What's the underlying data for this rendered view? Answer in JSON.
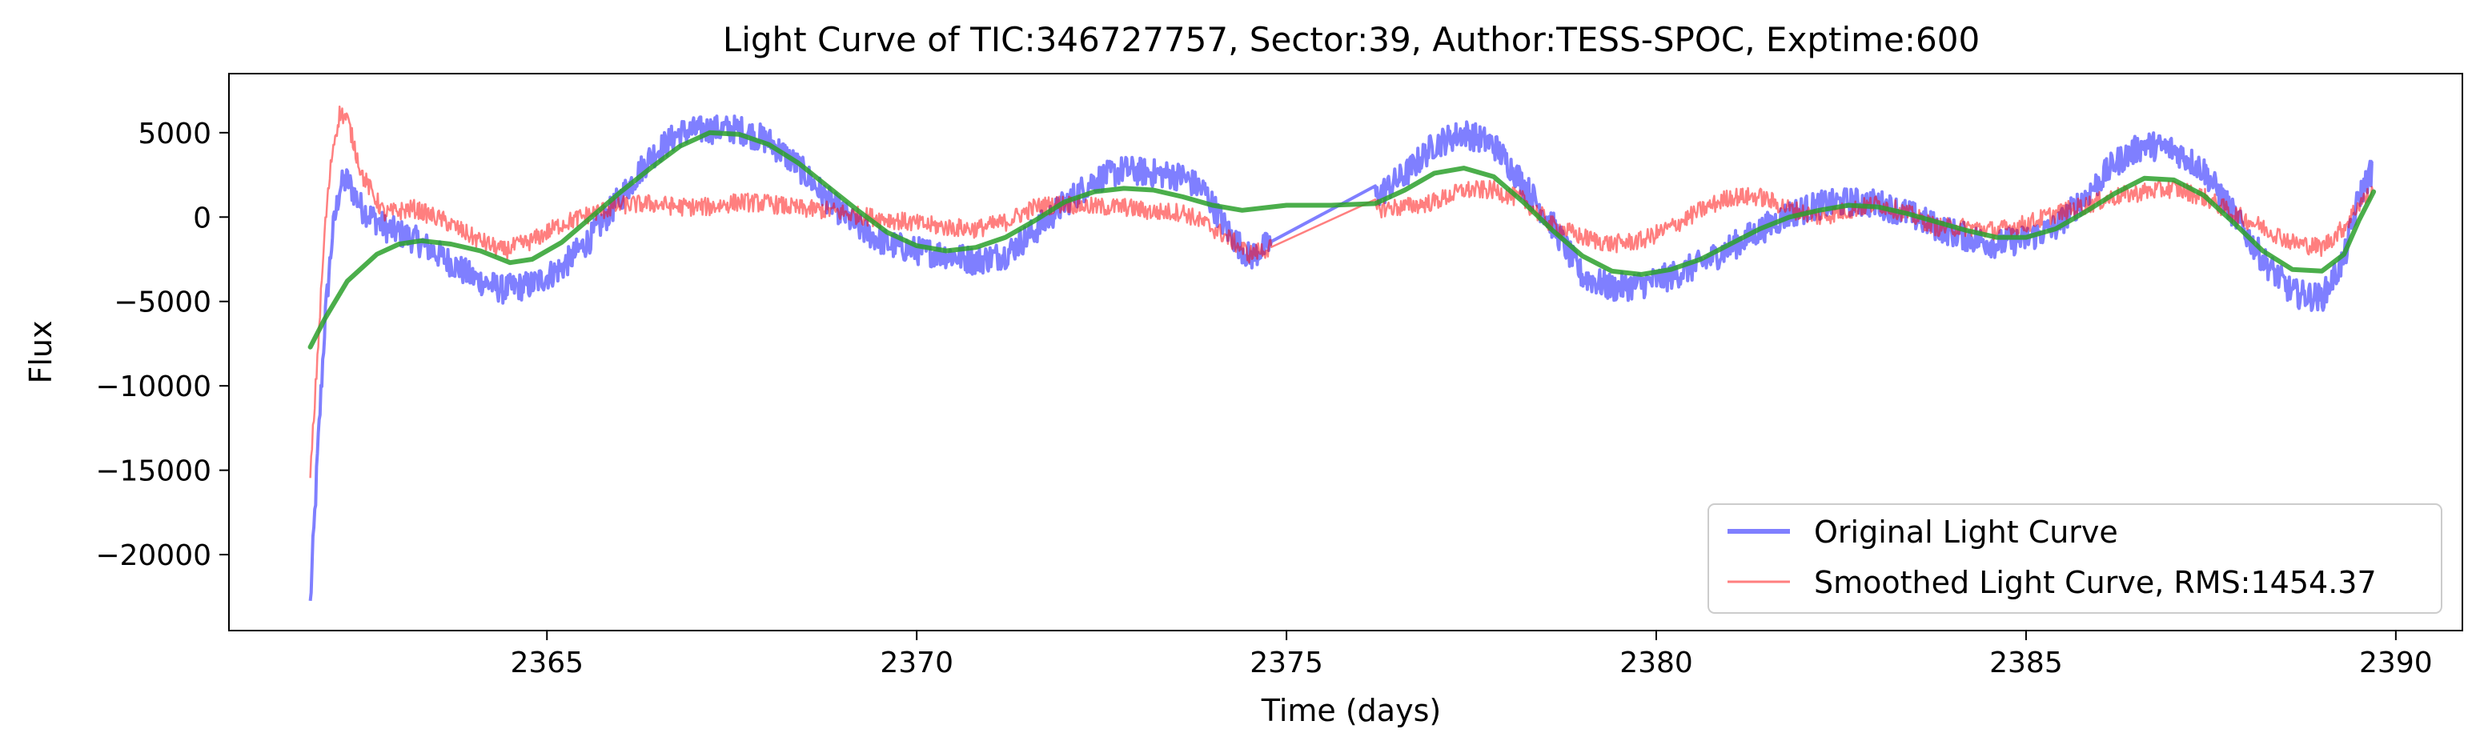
{
  "chart_data": {
    "type": "line",
    "title": "Light Curve of TIC:346727757, Sector:39, Author:TESS-SPOC, Exptime:600",
    "xlabel": "Time (days)",
    "ylabel": "Flux",
    "xlim": [
      2360.7,
      2390.9
    ],
    "ylim": [
      -24500,
      8500
    ],
    "xticks": [
      2365,
      2370,
      2375,
      2380,
      2385,
      2390
    ],
    "yticks": [
      5000,
      0,
      -5000,
      -10000,
      -15000,
      -20000
    ],
    "grid": false,
    "legend_position": "lower-right",
    "gap": [
      2374.8,
      2376.2
    ],
    "series": [
      {
        "name": "Original Light Curve",
        "color": "#0000ff",
        "noise_amplitude": 850,
        "points": [
          [
            2361.8,
            -23000
          ],
          [
            2361.9,
            -14000
          ],
          [
            2362.0,
            -6000
          ],
          [
            2362.1,
            -1000
          ],
          [
            2362.2,
            1800
          ],
          [
            2362.3,
            2200
          ],
          [
            2362.5,
            500
          ],
          [
            2362.8,
            -600
          ],
          [
            2363.2,
            -1300
          ],
          [
            2363.6,
            -2400
          ],
          [
            2364.0,
            -3600
          ],
          [
            2364.4,
            -4300
          ],
          [
            2364.8,
            -4000
          ],
          [
            2365.2,
            -3000
          ],
          [
            2365.6,
            -1200
          ],
          [
            2366.0,
            1200
          ],
          [
            2366.4,
            3600
          ],
          [
            2366.8,
            5000
          ],
          [
            2367.2,
            5200
          ],
          [
            2367.6,
            5200
          ],
          [
            2368.0,
            4500
          ],
          [
            2368.4,
            3000
          ],
          [
            2368.8,
            1000
          ],
          [
            2369.2,
            -600
          ],
          [
            2369.6,
            -1600
          ],
          [
            2370.0,
            -2000
          ],
          [
            2370.4,
            -2200
          ],
          [
            2370.8,
            -2600
          ],
          [
            2371.2,
            -2200
          ],
          [
            2371.6,
            -800
          ],
          [
            2372.0,
            800
          ],
          [
            2372.4,
            2200
          ],
          [
            2372.8,
            2800
          ],
          [
            2373.2,
            2600
          ],
          [
            2373.6,
            2400
          ],
          [
            2373.9,
            1500
          ],
          [
            2374.2,
            -800
          ],
          [
            2374.5,
            -2400
          ],
          [
            2374.8,
            -1500
          ],
          [
            2376.2,
            1200
          ],
          [
            2376.6,
            2500
          ],
          [
            2377.0,
            4300
          ],
          [
            2377.4,
            5000
          ],
          [
            2377.8,
            4300
          ],
          [
            2378.2,
            2000
          ],
          [
            2378.6,
            -500
          ],
          [
            2379.0,
            -3500
          ],
          [
            2379.4,
            -4200
          ],
          [
            2379.8,
            -4000
          ],
          [
            2380.2,
            -3500
          ],
          [
            2380.6,
            -2800
          ],
          [
            2381.0,
            -1800
          ],
          [
            2381.4,
            -800
          ],
          [
            2381.8,
            200
          ],
          [
            2382.2,
            700
          ],
          [
            2382.6,
            900
          ],
          [
            2383.0,
            800
          ],
          [
            2383.4,
            200
          ],
          [
            2383.8,
            -600
          ],
          [
            2384.2,
            -1200
          ],
          [
            2384.6,
            -1600
          ],
          [
            2385.0,
            -1300
          ],
          [
            2385.4,
            -600
          ],
          [
            2385.8,
            1200
          ],
          [
            2386.2,
            3200
          ],
          [
            2386.6,
            4300
          ],
          [
            2387.0,
            4000
          ],
          [
            2387.4,
            2800
          ],
          [
            2387.8,
            200
          ],
          [
            2388.2,
            -2500
          ],
          [
            2388.6,
            -4500
          ],
          [
            2389.0,
            -4800
          ],
          [
            2389.3,
            -2500
          ],
          [
            2389.5,
            1200
          ],
          [
            2389.7,
            3000
          ]
        ]
      },
      {
        "name": "Smoothed Light Curve, RMS:1454.37",
        "color": "#ff0000",
        "noise_amplitude": 550,
        "points": [
          [
            2361.8,
            -15500
          ],
          [
            2361.9,
            -8000
          ],
          [
            2362.0,
            -500
          ],
          [
            2362.1,
            4000
          ],
          [
            2362.2,
            6200
          ],
          [
            2362.3,
            5800
          ],
          [
            2362.5,
            2500
          ],
          [
            2362.8,
            200
          ],
          [
            2363.2,
            500
          ],
          [
            2363.6,
            -200
          ],
          [
            2364.0,
            -1200
          ],
          [
            2364.4,
            -2000
          ],
          [
            2364.8,
            -1400
          ],
          [
            2365.2,
            -400
          ],
          [
            2365.6,
            200
          ],
          [
            2366.0,
            700
          ],
          [
            2366.4,
            800
          ],
          [
            2366.8,
            600
          ],
          [
            2367.2,
            600
          ],
          [
            2367.6,
            900
          ],
          [
            2368.0,
            800
          ],
          [
            2368.4,
            500
          ],
          [
            2368.8,
            400
          ],
          [
            2369.2,
            100
          ],
          [
            2369.6,
            -100
          ],
          [
            2370.0,
            -400
          ],
          [
            2370.4,
            -600
          ],
          [
            2370.8,
            -700
          ],
          [
            2371.2,
            -300
          ],
          [
            2371.6,
            600
          ],
          [
            2372.0,
            800
          ],
          [
            2372.4,
            600
          ],
          [
            2372.8,
            600
          ],
          [
            2373.2,
            300
          ],
          [
            2373.6,
            300
          ],
          [
            2373.9,
            -400
          ],
          [
            2374.2,
            -1200
          ],
          [
            2374.5,
            -2200
          ],
          [
            2374.8,
            -1800
          ],
          [
            2376.2,
            500
          ],
          [
            2376.6,
            600
          ],
          [
            2377.0,
            900
          ],
          [
            2377.4,
            1600
          ],
          [
            2377.8,
            1600
          ],
          [
            2378.2,
            1000
          ],
          [
            2378.6,
            -500
          ],
          [
            2379.0,
            -1200
          ],
          [
            2379.4,
            -1600
          ],
          [
            2379.8,
            -1400
          ],
          [
            2380.2,
            -600
          ],
          [
            2380.6,
            400
          ],
          [
            2381.0,
            1200
          ],
          [
            2381.4,
            1200
          ],
          [
            2381.8,
            500
          ],
          [
            2382.2,
            0
          ],
          [
            2382.6,
            400
          ],
          [
            2383.0,
            800
          ],
          [
            2383.4,
            200
          ],
          [
            2383.8,
            -600
          ],
          [
            2384.2,
            -600
          ],
          [
            2384.6,
            -800
          ],
          [
            2385.0,
            -400
          ],
          [
            2385.4,
            200
          ],
          [
            2385.8,
            700
          ],
          [
            2386.2,
            1200
          ],
          [
            2386.6,
            1500
          ],
          [
            2387.0,
            1700
          ],
          [
            2387.4,
            1200
          ],
          [
            2387.8,
            200
          ],
          [
            2388.2,
            -600
          ],
          [
            2388.6,
            -1500
          ],
          [
            2389.0,
            -1800
          ],
          [
            2389.3,
            -600
          ],
          [
            2389.5,
            800
          ],
          [
            2389.7,
            1500
          ]
        ]
      },
      {
        "color": "#2ca02c",
        "points": [
          [
            2361.8,
            -7700
          ],
          [
            2362.0,
            -6000
          ],
          [
            2362.3,
            -3800
          ],
          [
            2362.7,
            -2200
          ],
          [
            2363.0,
            -1600
          ],
          [
            2363.3,
            -1400
          ],
          [
            2363.7,
            -1600
          ],
          [
            2364.1,
            -2000
          ],
          [
            2364.5,
            -2700
          ],
          [
            2364.8,
            -2500
          ],
          [
            2365.2,
            -1500
          ],
          [
            2365.6,
            0
          ],
          [
            2366.0,
            1500
          ],
          [
            2366.4,
            2900
          ],
          [
            2366.8,
            4200
          ],
          [
            2367.2,
            5000
          ],
          [
            2367.6,
            4900
          ],
          [
            2368.0,
            4300
          ],
          [
            2368.4,
            3200
          ],
          [
            2368.8,
            1800
          ],
          [
            2369.2,
            400
          ],
          [
            2369.6,
            -900
          ],
          [
            2370.0,
            -1700
          ],
          [
            2370.4,
            -2000
          ],
          [
            2370.8,
            -1800
          ],
          [
            2371.2,
            -1200
          ],
          [
            2371.6,
            -200
          ],
          [
            2372.0,
            900
          ],
          [
            2372.4,
            1500
          ],
          [
            2372.8,
            1700
          ],
          [
            2373.2,
            1600
          ],
          [
            2373.6,
            1200
          ],
          [
            2374.0,
            700
          ],
          [
            2374.4,
            400
          ],
          [
            2374.8,
            600
          ],
          [
            2375.0,
            700
          ],
          [
            2375.6,
            700
          ],
          [
            2376.2,
            800
          ],
          [
            2376.6,
            1600
          ],
          [
            2377.0,
            2600
          ],
          [
            2377.4,
            2900
          ],
          [
            2377.8,
            2400
          ],
          [
            2378.2,
            900
          ],
          [
            2378.6,
            -800
          ],
          [
            2379.0,
            -2300
          ],
          [
            2379.4,
            -3200
          ],
          [
            2379.8,
            -3400
          ],
          [
            2380.2,
            -3100
          ],
          [
            2380.6,
            -2500
          ],
          [
            2381.0,
            -1600
          ],
          [
            2381.4,
            -700
          ],
          [
            2381.8,
            0
          ],
          [
            2382.2,
            400
          ],
          [
            2382.6,
            700
          ],
          [
            2383.0,
            600
          ],
          [
            2383.4,
            200
          ],
          [
            2383.8,
            -300
          ],
          [
            2384.2,
            -800
          ],
          [
            2384.6,
            -1200
          ],
          [
            2385.0,
            -1200
          ],
          [
            2385.4,
            -700
          ],
          [
            2385.8,
            300
          ],
          [
            2386.2,
            1400
          ],
          [
            2386.6,
            2300
          ],
          [
            2387.0,
            2200
          ],
          [
            2387.4,
            1300
          ],
          [
            2387.8,
            -300
          ],
          [
            2388.2,
            -2000
          ],
          [
            2388.6,
            -3100
          ],
          [
            2389.0,
            -3200
          ],
          [
            2389.3,
            -2200
          ],
          [
            2389.5,
            -200
          ],
          [
            2389.7,
            1500
          ]
        ]
      }
    ]
  }
}
